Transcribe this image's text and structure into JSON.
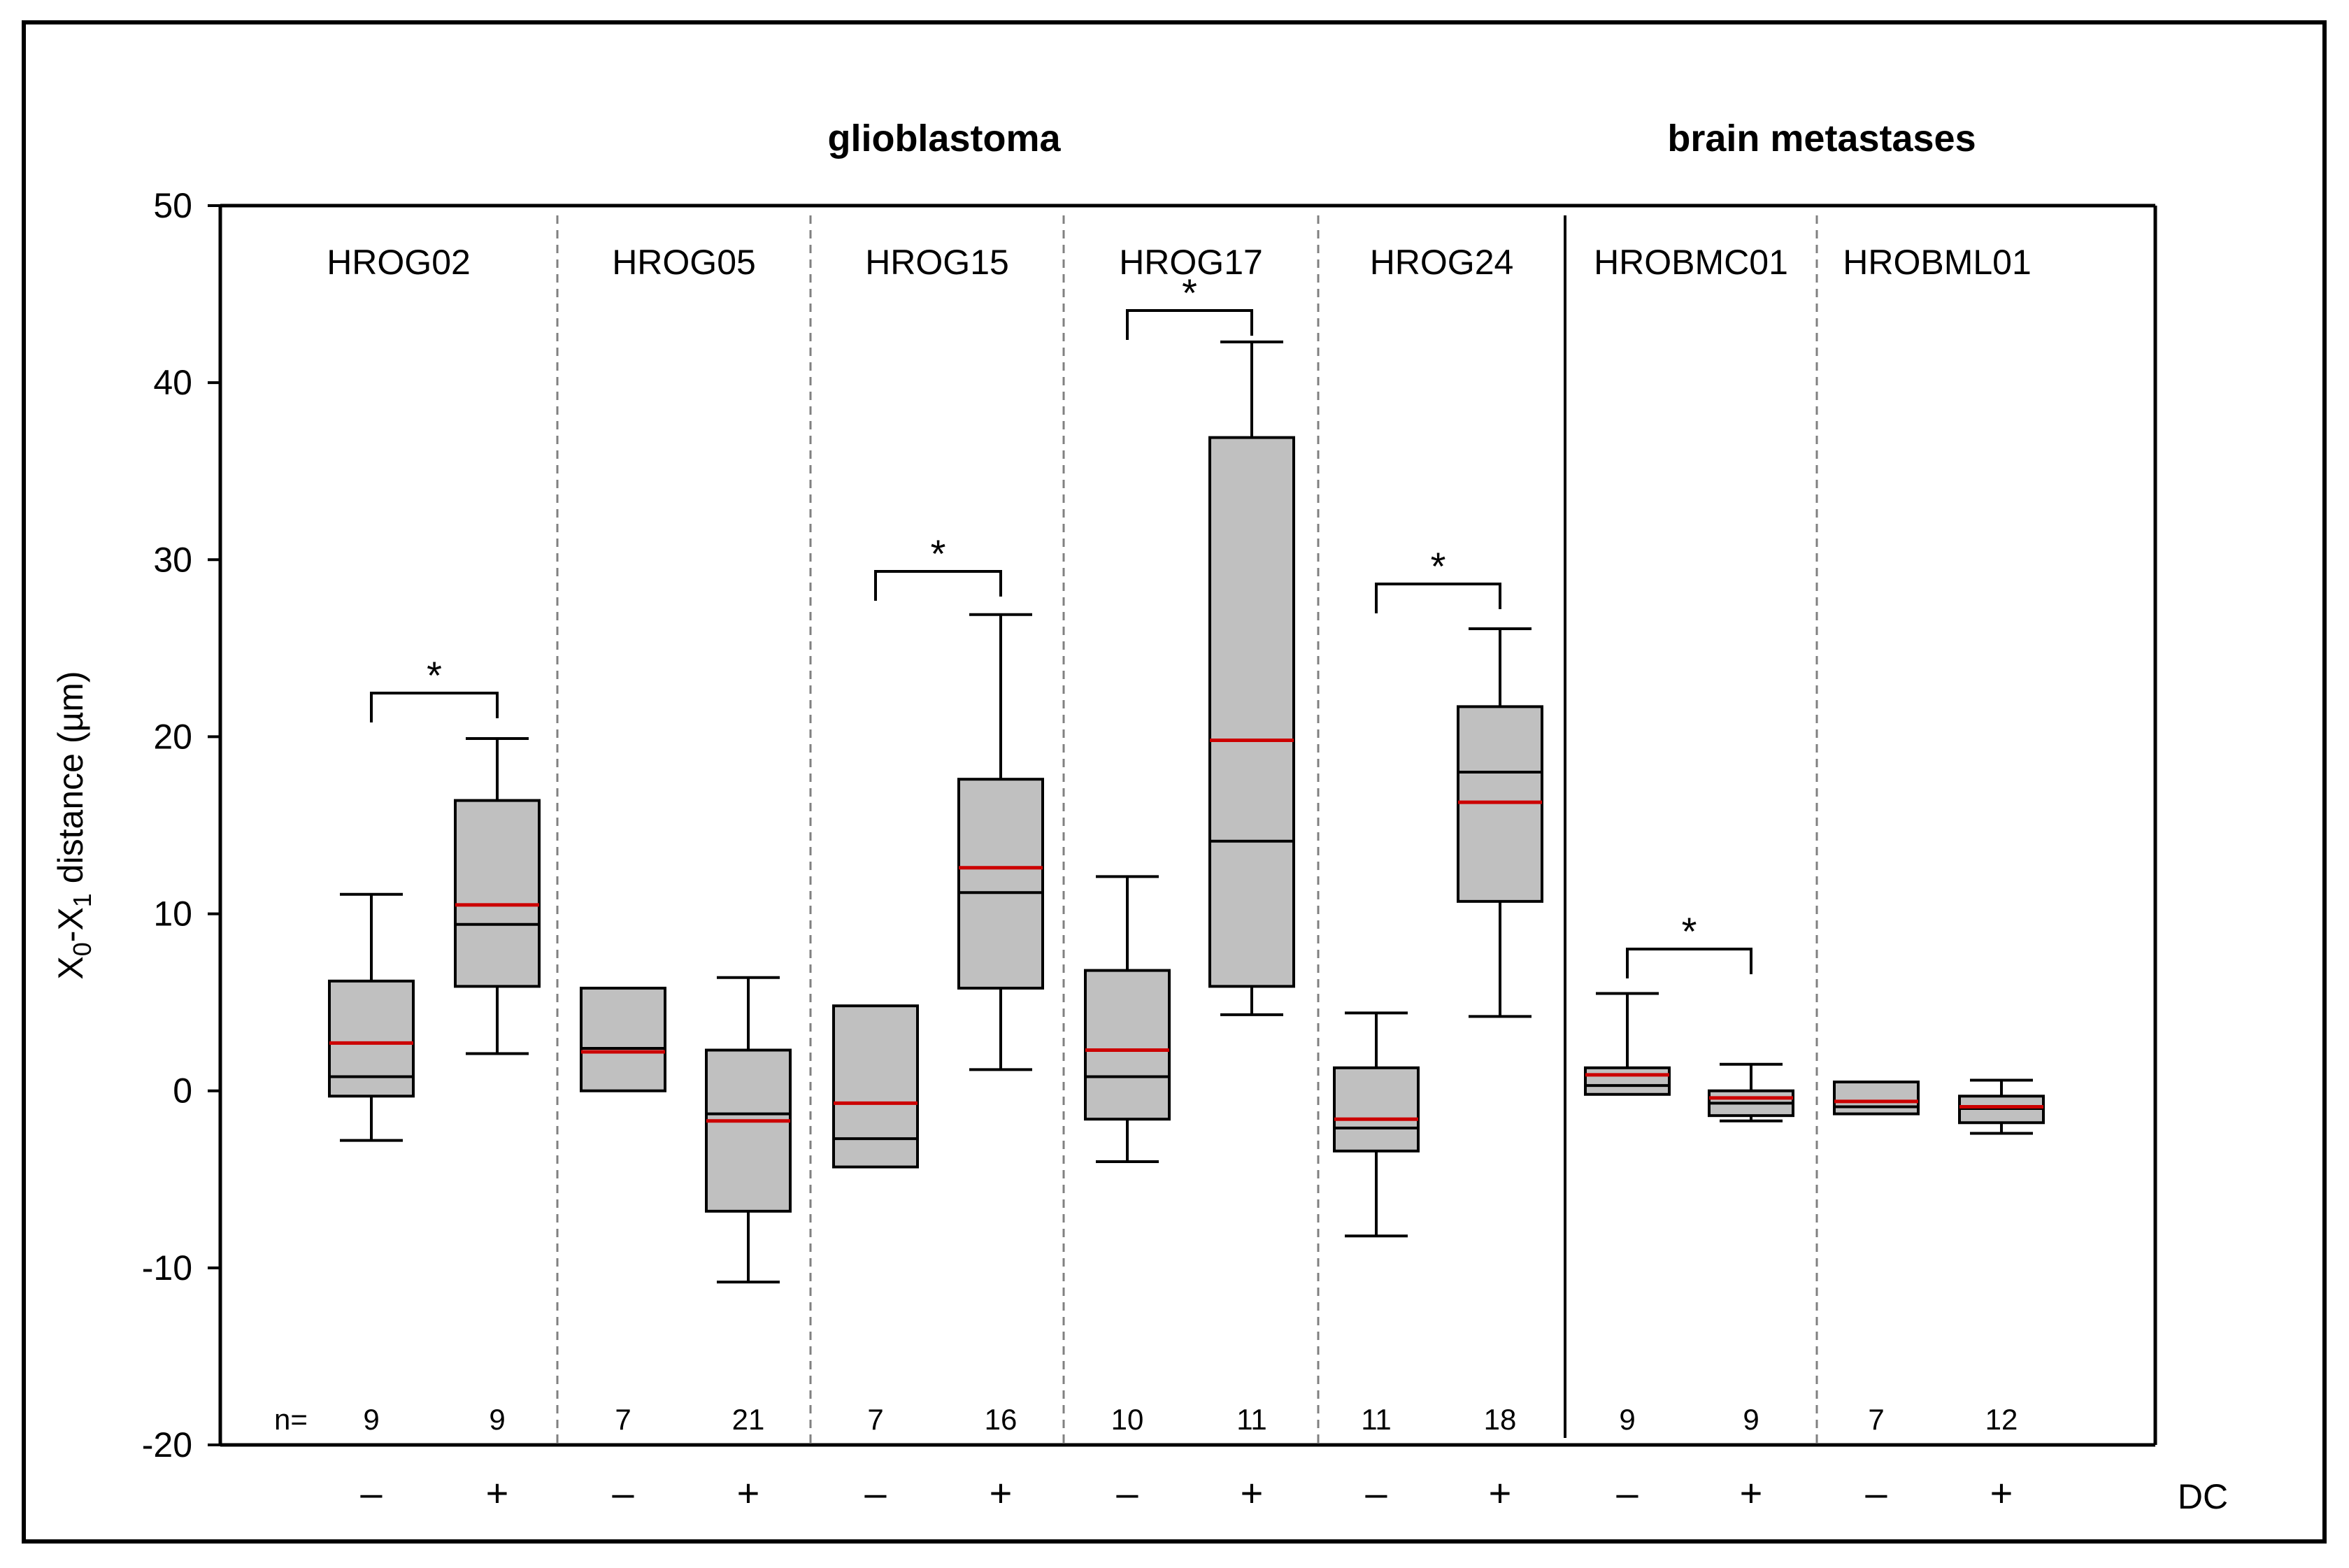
{
  "chart_data": {
    "type": "box",
    "ylabel_main": "X",
    "ylabel_sub0": "0",
    "ylabel_dash": "-X",
    "ylabel_sub1": "1",
    "ylabel_rest": " distance (µm)",
    "ylim": [
      -20,
      50
    ],
    "yticks": [
      50,
      40,
      30,
      20,
      10,
      0,
      -10,
      -20
    ],
    "groups": [
      {
        "label": "glioblastoma",
        "from": 0,
        "to": 4
      },
      {
        "label": "brain metastases",
        "from": 5,
        "to": 6
      }
    ],
    "n_prefix": "n=",
    "dc_label": "DC",
    "cell_lines": [
      {
        "name": "HROG02",
        "sig": "*",
        "boxes": [
          {
            "dc": "–",
            "n": "9",
            "min": -2.8,
            "q1": -0.3,
            "median": 0.8,
            "mean": 2.7,
            "q3": 6.2,
            "max": 11.1
          },
          {
            "dc": "+",
            "n": "9",
            "min": 2.1,
            "q1": 5.9,
            "median": 9.4,
            "mean": 10.5,
            "q3": 16.4,
            "max": 19.9
          }
        ]
      },
      {
        "name": "HROG05",
        "sig": "",
        "boxes": [
          {
            "dc": "–",
            "n": "7",
            "min": 0.0,
            "q1": 0.0,
            "median": 2.4,
            "mean": 2.2,
            "q3": 5.8,
            "max": 5.8
          },
          {
            "dc": "+",
            "n": "21",
            "min": -10.8,
            "q1": -6.8,
            "median": -1.3,
            "mean": -1.7,
            "q3": 2.3,
            "max": 6.4
          }
        ]
      },
      {
        "name": "HROG15",
        "sig": "*",
        "boxes": [
          {
            "dc": "–",
            "n": "7",
            "min": -4.3,
            "q1": -4.3,
            "median": -2.7,
            "mean": -0.7,
            "q3": 4.8,
            "max": 4.8
          },
          {
            "dc": "+",
            "n": "16",
            "min": 1.2,
            "q1": 5.8,
            "median": 11.2,
            "mean": 12.6,
            "q3": 17.6,
            "max": 26.9
          }
        ]
      },
      {
        "name": "HROG17",
        "sig": "*",
        "boxes": [
          {
            "dc": "–",
            "n": "10",
            "min": -4.0,
            "q1": -1.6,
            "median": 0.8,
            "mean": 2.3,
            "q3": 6.8,
            "max": 12.1
          },
          {
            "dc": "+",
            "n": "11",
            "min": 4.3,
            "q1": 5.9,
            "median": 14.1,
            "mean": 19.8,
            "q3": 36.9,
            "max": 42.3
          }
        ]
      },
      {
        "name": "HROG24",
        "sig": "*",
        "boxes": [
          {
            "dc": "–",
            "n": "11",
            "min": -8.2,
            "q1": -3.4,
            "median": -2.1,
            "mean": -1.6,
            "q3": 1.3,
            "max": 4.4
          },
          {
            "dc": "+",
            "n": "18",
            "min": 4.2,
            "q1": 10.7,
            "median": 18.0,
            "mean": 16.3,
            "q3": 21.7,
            "max": 26.1
          }
        ]
      },
      {
        "name": "HROBMC01",
        "sig": "*",
        "boxes": [
          {
            "dc": "–",
            "n": "9",
            "min": -0.2,
            "q1": -0.2,
            "median": 0.3,
            "mean": 0.9,
            "q3": 1.3,
            "max": 5.5
          },
          {
            "dc": "+",
            "n": "9",
            "min": -1.7,
            "q1": -1.4,
            "median": -0.7,
            "mean": -0.4,
            "q3": 0.0,
            "max": 1.5
          }
        ]
      },
      {
        "name": "HROBML01",
        "sig": "",
        "boxes": [
          {
            "dc": "–",
            "n": "7",
            "min": -1.3,
            "q1": -1.3,
            "median": -0.9,
            "mean": -0.6,
            "q3": 0.5,
            "max": 0.5
          },
          {
            "dc": "+",
            "n": "12",
            "min": -2.4,
            "q1": -1.8,
            "median": -1.0,
            "mean": -0.9,
            "q3": -0.3,
            "max": 0.6
          }
        ]
      }
    ],
    "colors": {
      "box_fill": "#c0c0c0",
      "mean_line": "#cc0000",
      "frame": "#000000",
      "divider": "#808080"
    }
  }
}
